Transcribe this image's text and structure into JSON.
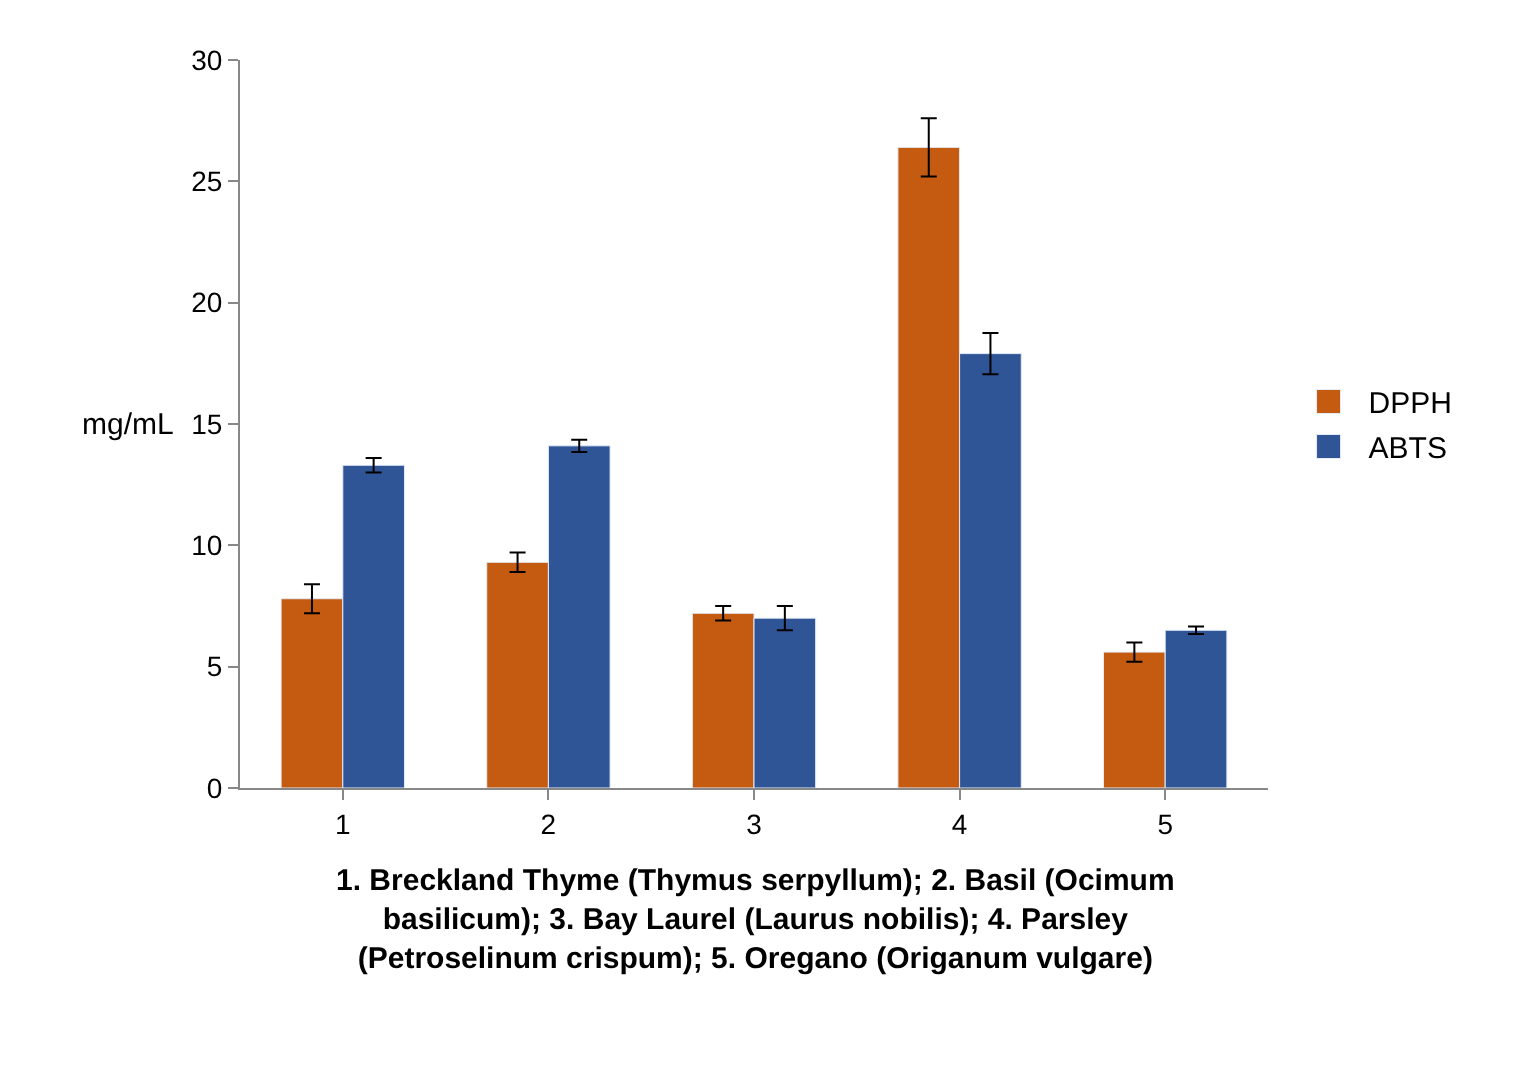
{
  "chart_data": {
    "type": "bar",
    "xlabel": "1. Breckland Thyme (Thymus serpyllum); 2. Basil (Ocimum basilicum); 3. Bay Laurel (Laurus nobilis); 4. Parsley (Petroselinum crispum); 5. Oregano (Origanum vulgare)",
    "ylabel": "mg/mL",
    "categories": [
      "1",
      "2",
      "3",
      "4",
      "5"
    ],
    "series": [
      {
        "name": "DPPH",
        "color": "#c55a11",
        "values": [
          7.8,
          9.3,
          7.2,
          26.4,
          5.6
        ],
        "errors": [
          0.6,
          0.4,
          0.3,
          1.2,
          0.4
        ]
      },
      {
        "name": "ABTS",
        "color": "#2f5597",
        "values": [
          13.3,
          14.1,
          7.0,
          17.9,
          6.5
        ],
        "errors": [
          0.3,
          0.25,
          0.5,
          0.85,
          0.15
        ]
      }
    ],
    "ylim": [
      0,
      30
    ],
    "yticks": [
      0,
      5,
      10,
      15,
      20,
      25,
      30
    ],
    "legend": "right"
  }
}
